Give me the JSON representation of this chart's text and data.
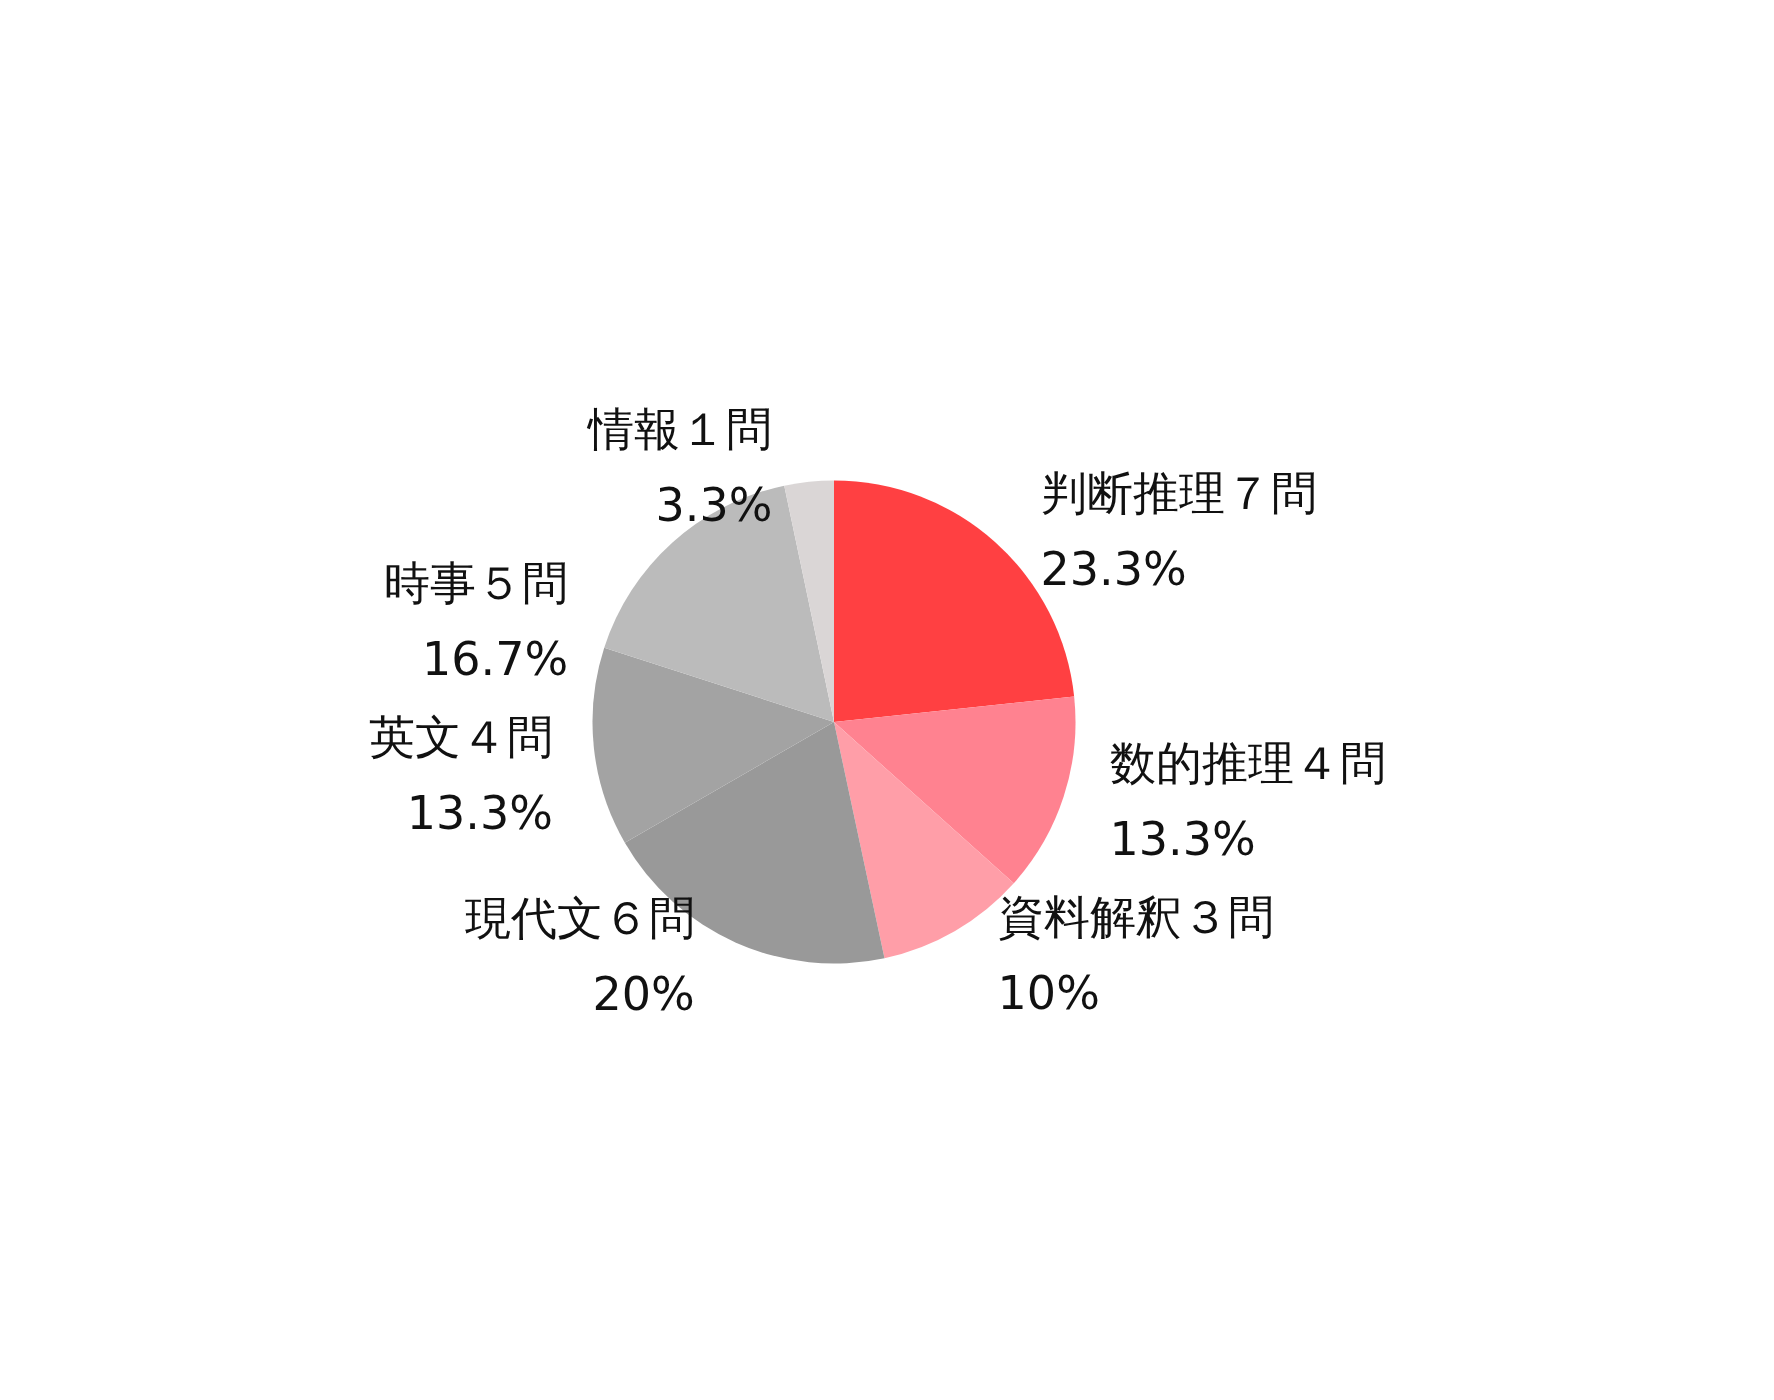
{
  "chart_data": {
    "type": "pie",
    "categories": [
      "判断推理７問",
      "数的推理４問",
      "資料解釈３問",
      "現代文６問",
      "英文４問",
      "時事５問",
      "情報１問"
    ],
    "values": [
      23.3,
      13.3,
      10,
      20,
      13.3,
      16.7,
      3.3
    ],
    "value_labels": [
      "23.3%",
      "13.3%",
      "10%",
      "20%",
      "13.3%",
      "16.7%",
      "3.3%"
    ],
    "colors": [
      "#ff4042",
      "#ff8290",
      "#ff9ea8",
      "#999999",
      "#a3a3a3",
      "#bbbbbb",
      "#dad6d6"
    ],
    "legend": false
  }
}
